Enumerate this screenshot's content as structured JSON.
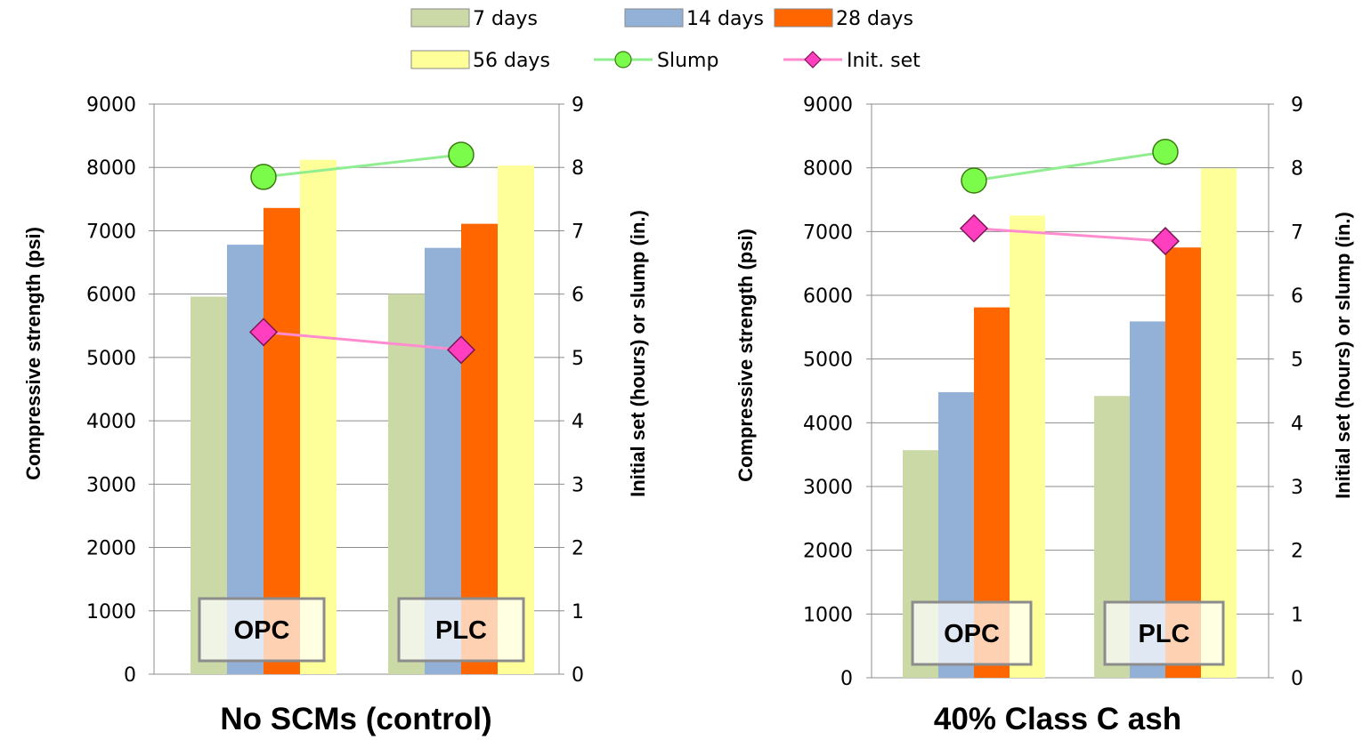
{
  "chart_data": [
    {
      "type": "bar",
      "title": "No SCMs (control)",
      "ylabel": "Compressive strength (psi)",
      "y2label": "Initial set (hours) or slump (in.)",
      "ylim": [
        0,
        9000
      ],
      "y2lim": [
        0,
        9
      ],
      "yticks": [
        "0",
        "1000",
        "2000",
        "3000",
        "4000",
        "5000",
        "6000",
        "7000",
        "8000",
        "9000"
      ],
      "y2ticks": [
        "0",
        "1",
        "2",
        "3",
        "4",
        "5",
        "6",
        "7",
        "8",
        "9"
      ],
      "categories": [
        "OPC",
        "PLC"
      ],
      "series": [
        {
          "name": "7 days",
          "color": "#cad9a6",
          "values": [
            5960,
            6000
          ]
        },
        {
          "name": "14 days",
          "color": "#93b1d7",
          "values": [
            6780,
            6730
          ]
        },
        {
          "name": "28 days",
          "color": "#ff6600",
          "values": [
            7360,
            7110
          ]
        },
        {
          "name": "56 days",
          "color": "#ffff99",
          "values": [
            8120,
            8030
          ]
        }
      ],
      "lines": [
        {
          "name": "Slump",
          "color": "#90ee90",
          "marker": "circle",
          "axis": "secondary",
          "values": [
            7.85,
            8.2
          ]
        },
        {
          "name": "Init. set",
          "color": "#ff8ccf",
          "marker": "diamond",
          "axis": "secondary",
          "values": [
            5.4,
            5.12
          ]
        }
      ],
      "grid": "horizontal",
      "legend": "top-center"
    },
    {
      "type": "bar",
      "title": "40% Class C ash",
      "ylabel": "Compressive strength (psi)",
      "y2label": "Initial set (hours) or slump (in.)",
      "ylim": [
        0,
        9000
      ],
      "y2lim": [
        0,
        9
      ],
      "yticks": [
        "0",
        "1000",
        "2000",
        "3000",
        "4000",
        "5000",
        "6000",
        "7000",
        "8000",
        "9000"
      ],
      "y2ticks": [
        "0",
        "1",
        "2",
        "3",
        "4",
        "5",
        "6",
        "7",
        "8",
        "9"
      ],
      "categories": [
        "OPC",
        "PLC"
      ],
      "series": [
        {
          "name": "7 days",
          "color": "#cad9a6",
          "values": [
            3570,
            4420
          ]
        },
        {
          "name": "14 days",
          "color": "#93b1d7",
          "values": [
            4480,
            5590
          ]
        },
        {
          "name": "28 days",
          "color": "#ff6600",
          "values": [
            5810,
            6750
          ]
        },
        {
          "name": "56 days",
          "color": "#ffff99",
          "values": [
            7250,
            7990
          ]
        }
      ],
      "lines": [
        {
          "name": "Slump",
          "color": "#90ee90",
          "marker": "circle",
          "axis": "secondary",
          "values": [
            7.8,
            8.25
          ]
        },
        {
          "name": "Init. set",
          "color": "#ff8ccf",
          "marker": "diamond",
          "axis": "secondary",
          "values": [
            7.05,
            6.85
          ]
        }
      ],
      "grid": "horizontal",
      "legend": "top-center"
    }
  ],
  "legend": {
    "items": [
      {
        "label": "7 days",
        "kind": "bar",
        "color": "#cad9a6"
      },
      {
        "label": "14 days",
        "kind": "bar",
        "color": "#93b1d7"
      },
      {
        "label": "28 days",
        "kind": "bar",
        "color": "#ff6600"
      },
      {
        "label": "56 days",
        "kind": "bar",
        "color": "#ffff99"
      },
      {
        "label": "Slump",
        "kind": "circle",
        "color": "#90ee90"
      },
      {
        "label": "Init. set",
        "kind": "diamond",
        "color": "#ff8ccf"
      }
    ]
  }
}
